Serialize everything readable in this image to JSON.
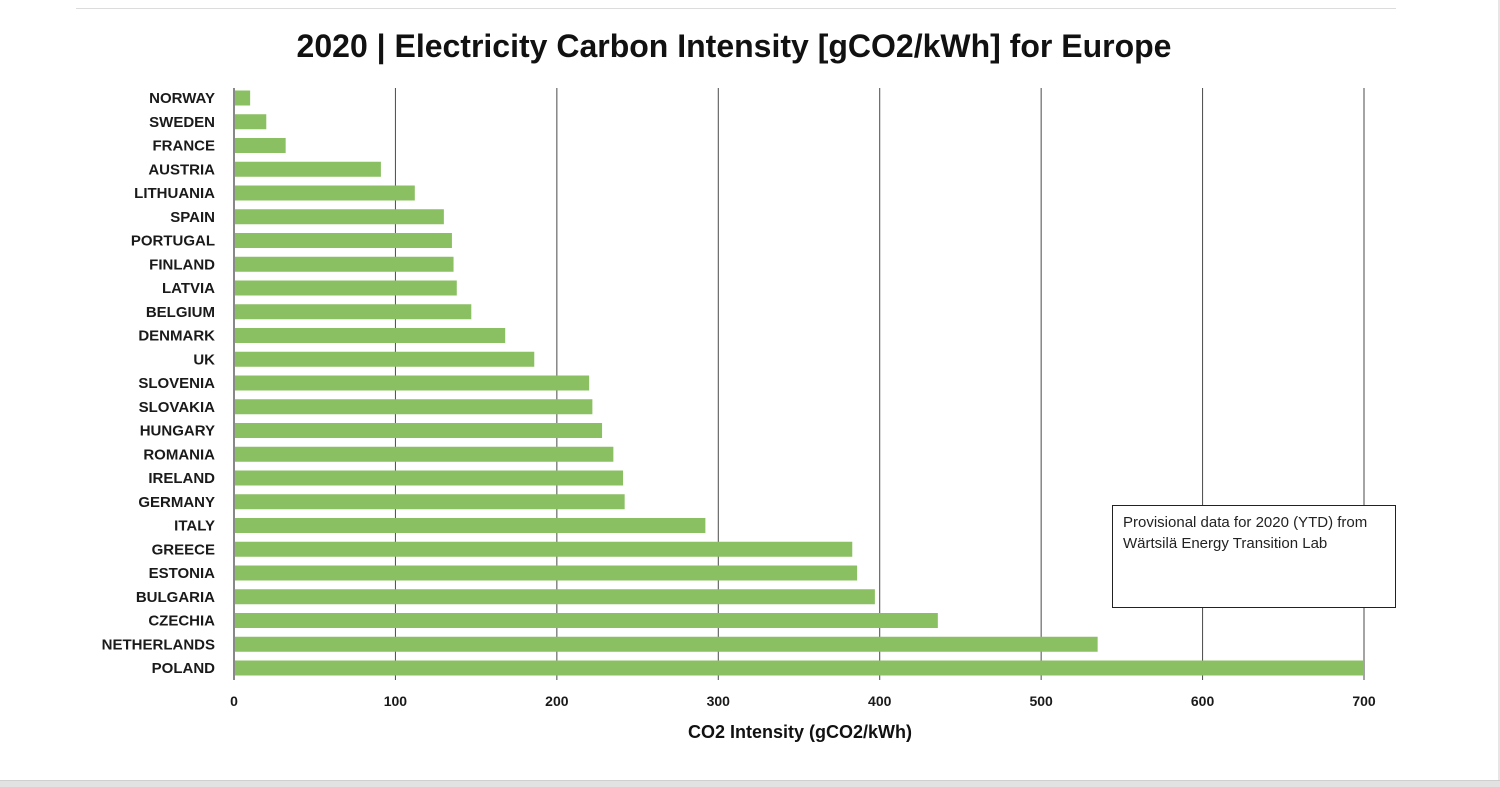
{
  "chart_data": {
    "type": "bar",
    "orientation": "horizontal",
    "title": "2020 | Electricity Carbon Intensity [gCO2/kWh] for Europe",
    "xlabel": "CO2 Intensity (gCO2/kWh)",
    "ylabel": "",
    "xlim": [
      0,
      700
    ],
    "x_ticks": [
      0,
      100,
      200,
      300,
      400,
      500,
      600,
      700
    ],
    "grid": "vertical",
    "categories": [
      "NORWAY",
      "SWEDEN",
      "FRANCE",
      "AUSTRIA",
      "LITHUANIA",
      "SPAIN",
      "PORTUGAL",
      "FINLAND",
      "LATVIA",
      "BELGIUM",
      "DENMARK",
      "UK",
      "SLOVENIA",
      "SLOVAKIA",
      "HUNGARY",
      "ROMANIA",
      "IRELAND",
      "GERMANY",
      "ITALY",
      "GREECE",
      "ESTONIA",
      "BULGARIA",
      "CZECHIA",
      "NETHERLANDS",
      "POLAND"
    ],
    "values": [
      10,
      20,
      32,
      91,
      112,
      130,
      135,
      136,
      138,
      147,
      168,
      186,
      220,
      222,
      228,
      235,
      241,
      242,
      292,
      383,
      386,
      397,
      436,
      535,
      700
    ],
    "bar_color": "#8abf62",
    "grid_color": "#4a4a4a"
  },
  "note": {
    "text": "Provisional data for 2020 (YTD) from Wärtsilä Energy Transition Lab"
  }
}
